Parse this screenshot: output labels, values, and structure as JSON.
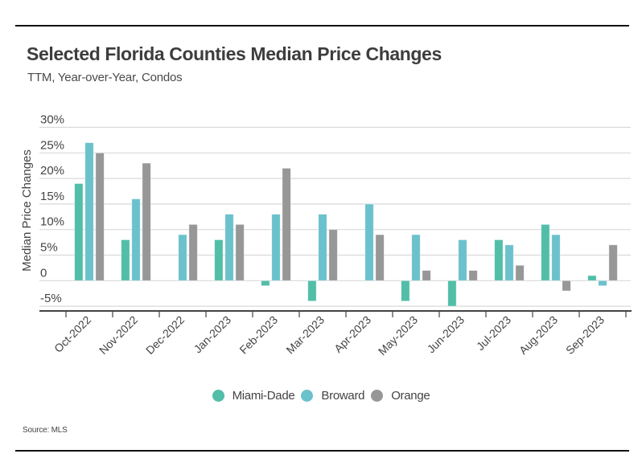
{
  "header": {
    "title": "Selected Florida Counties Median Price Changes",
    "subtitle": "TTM, Year-over-Year, Condos"
  },
  "footer": {
    "source": "Source: MLS"
  },
  "chart_data": {
    "type": "bar",
    "title": "Selected Florida Counties Median Price Changes",
    "subtitle": "TTM, Year-over-Year, Condos",
    "xlabel": "",
    "ylabel": "Median Price Changes",
    "ylim": [
      -5,
      30
    ],
    "y_ticks": [
      -5,
      0,
      5,
      10,
      15,
      20,
      25,
      30
    ],
    "y_tick_labels": [
      "-5%",
      "0",
      "5%",
      "10%",
      "15%",
      "20%",
      "25%",
      "30%"
    ],
    "grid": true,
    "legend_position": "bottom-center",
    "categories": [
      "Oct-2022",
      "Nov-2022",
      "Dec-2022",
      "Jan-2023",
      "Feb-2023",
      "Mar-2023",
      "Apr-2023",
      "May-2023",
      "Jun-2023",
      "Jul-2023",
      "Aug-2023",
      "Sep-2023"
    ],
    "series": [
      {
        "name": "Miami-Dade",
        "color": "#52BEA8",
        "values": [
          19,
          8,
          0,
          8,
          -1,
          -4,
          0,
          -4,
          -5,
          8,
          11,
          1
        ]
      },
      {
        "name": "Broward",
        "color": "#6BC1CC",
        "values": [
          27,
          16,
          9,
          13,
          13,
          13,
          15,
          9,
          8,
          7,
          9,
          -1
        ]
      },
      {
        "name": "Orange",
        "color": "#979797",
        "values": [
          25,
          23,
          11,
          11,
          22,
          10,
          9,
          2,
          2,
          3,
          -2,
          7
        ]
      }
    ]
  }
}
